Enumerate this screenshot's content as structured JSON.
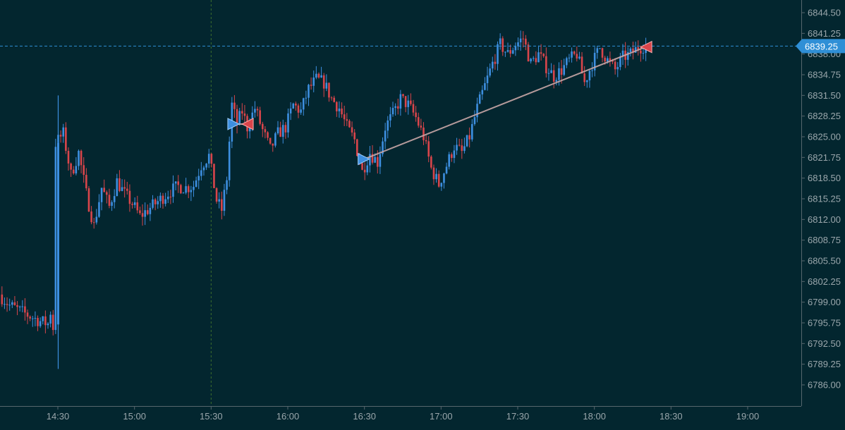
{
  "colors": {
    "background": "#03262f",
    "up": "#3d8fe0",
    "down": "#d9454b",
    "axis_text": "#9aa6ab",
    "axis_line": "#56666c",
    "price_line": "#2f8fd6",
    "price_badge": "#2f8fd6",
    "session_line": "#3d6e2e",
    "trade_line": "#c9a7a7"
  },
  "chart_data": {
    "type": "candlestick",
    "instrument_timeframe": "1-minute candles",
    "y_axis": {
      "ticks": [
        6844.5,
        6841.25,
        6838.0,
        6834.75,
        6831.5,
        6828.25,
        6825.0,
        6821.75,
        6818.5,
        6815.25,
        6812.0,
        6808.75,
        6805.5,
        6802.25,
        6799.0,
        6795.75,
        6792.5,
        6789.25,
        6786.0
      ],
      "tick_labels": [
        "6844.50",
        "6841.25",
        "6838.00",
        "6834.75",
        "6831.50",
        "6828.25",
        "6825.00",
        "6821.75",
        "6818.50",
        "6815.25",
        "6812.00",
        "6808.75",
        "6805.50",
        "6802.25",
        "6799.00",
        "6795.75",
        "6792.50",
        "6789.25",
        "6786.00"
      ],
      "range": [
        6782.8,
        6846.6
      ],
      "side": "right"
    },
    "x_axis": {
      "ticks": [
        "14:30",
        "15:00",
        "15:30",
        "16:00",
        "16:30",
        "17:00",
        "17:30",
        "18:00",
        "18:30",
        "19:00"
      ],
      "range": [
        "14:08",
        "19:30"
      ]
    },
    "current_price": {
      "value": 6839.25,
      "label": "6839.25"
    },
    "session_marker": {
      "time": "15:30",
      "style": "dashed vertical"
    },
    "trades": [
      {
        "entry_time": "15:39",
        "entry_price": 6827.0,
        "exit_time": "15:44",
        "exit_price": 6827.0
      },
      {
        "entry_time": "16:30",
        "entry_price": 6821.5,
        "exit_time": "18:20",
        "exit_price": 6839.1
      }
    ],
    "price_path": [
      [
        "14:08",
        6800.2
      ],
      [
        "14:12",
        6798.5
      ],
      [
        "14:18",
        6797.2
      ],
      [
        "14:24",
        6796.0
      ],
      [
        "14:27",
        6795.6
      ],
      [
        "14:28",
        6797.5
      ],
      [
        "14:29",
        6795.0
      ],
      [
        "14:30",
        6824.0
      ],
      [
        "14:33",
        6825.5
      ],
      [
        "14:36",
        6819.0
      ],
      [
        "14:39",
        6822.5
      ],
      [
        "14:42",
        6816.0
      ],
      [
        "14:45",
        6811.0
      ],
      [
        "14:48",
        6817.0
      ],
      [
        "14:51",
        6814.0
      ],
      [
        "14:54",
        6818.0
      ],
      [
        "14:57",
        6816.0
      ],
      [
        "15:00",
        6814.5
      ],
      [
        "15:03",
        6812.5
      ],
      [
        "15:06",
        6813.5
      ],
      [
        "15:09",
        6814.5
      ],
      [
        "15:12",
        6815.5
      ],
      [
        "15:15",
        6816.5
      ],
      [
        "15:18",
        6817.2
      ],
      [
        "15:21",
        6817.0
      ],
      [
        "15:24",
        6817.3
      ],
      [
        "15:27",
        6820.5
      ],
      [
        "15:30",
        6822.0
      ],
      [
        "15:33",
        6815.0
      ],
      [
        "15:35",
        6813.5
      ],
      [
        "15:37",
        6818.5
      ],
      [
        "15:39",
        6830.0
      ],
      [
        "15:41",
        6827.0
      ],
      [
        "15:43",
        6829.0
      ],
      [
        "15:45",
        6826.5
      ],
      [
        "15:48",
        6829.5
      ],
      [
        "15:51",
        6826.0
      ],
      [
        "15:54",
        6823.0
      ],
      [
        "15:57",
        6825.5
      ],
      [
        "16:00",
        6826.5
      ],
      [
        "16:03",
        6830.0
      ],
      [
        "16:06",
        6829.0
      ],
      [
        "16:09",
        6832.5
      ],
      [
        "16:12",
        6834.0
      ],
      [
        "16:15",
        6833.5
      ],
      [
        "16:18",
        6831.0
      ],
      [
        "16:21",
        6829.5
      ],
      [
        "16:24",
        6826.5
      ],
      [
        "16:27",
        6824.5
      ],
      [
        "16:30",
        6819.5
      ],
      [
        "16:33",
        6822.5
      ],
      [
        "16:36",
        6821.0
      ],
      [
        "16:39",
        6826.5
      ],
      [
        "16:42",
        6828.5
      ],
      [
        "16:45",
        6831.0
      ],
      [
        "16:48",
        6830.0
      ],
      [
        "16:51",
        6828.0
      ],
      [
        "16:54",
        6825.0
      ],
      [
        "16:57",
        6820.0
      ],
      [
        "17:00",
        6817.5
      ],
      [
        "17:03",
        6820.5
      ],
      [
        "17:06",
        6823.5
      ],
      [
        "17:09",
        6822.5
      ],
      [
        "17:12",
        6825.0
      ],
      [
        "17:15",
        6829.5
      ],
      [
        "17:18",
        6833.0
      ],
      [
        "17:21",
        6836.5
      ],
      [
        "17:24",
        6839.5
      ],
      [
        "17:27",
        6838.0
      ],
      [
        "17:30",
        6839.5
      ],
      [
        "17:33",
        6840.5
      ],
      [
        "17:36",
        6836.5
      ],
      [
        "17:39",
        6838.0
      ],
      [
        "17:42",
        6836.0
      ],
      [
        "17:45",
        6834.5
      ],
      [
        "17:48",
        6835.5
      ],
      [
        "17:51",
        6837.0
      ],
      [
        "17:54",
        6838.0
      ],
      [
        "17:57",
        6833.5
      ],
      [
        "18:00",
        6836.5
      ],
      [
        "18:03",
        6839.0
      ],
      [
        "18:06",
        6837.0
      ],
      [
        "18:09",
        6835.5
      ],
      [
        "18:12",
        6837.5
      ],
      [
        "18:15",
        6838.0
      ],
      [
        "18:18",
        6839.0
      ],
      [
        "18:20",
        6839.25
      ]
    ]
  }
}
